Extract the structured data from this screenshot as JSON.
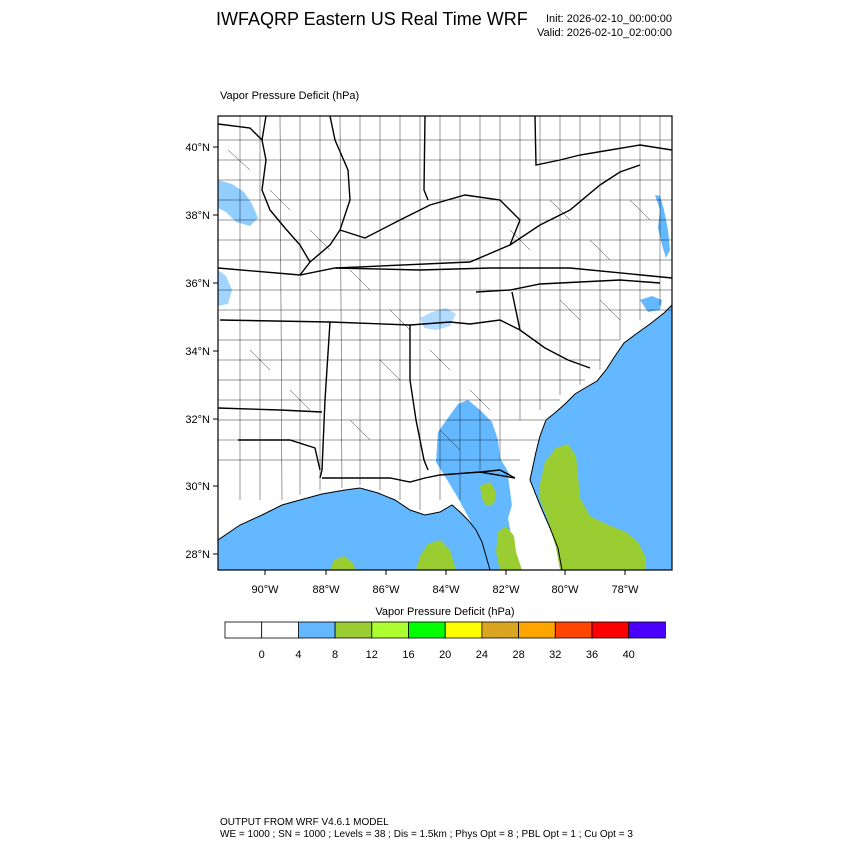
{
  "header": {
    "title": "IWFAQRP Eastern US Real Time WRF",
    "init": "Init: 2026-02-10_00:00:00",
    "valid": "Valid: 2026-02-10_02:00:00"
  },
  "field": {
    "label": "Vapor Pressure Deficit   (hPa)"
  },
  "map": {
    "lat_labels": [
      "40°N",
      "38°N",
      "36°N",
      "34°N",
      "32°N",
      "30°N",
      "28°N"
    ],
    "lon_labels": [
      "90°W",
      "88°W",
      "86°W",
      "84°W",
      "82°W",
      "80°W",
      "78°W"
    ],
    "ocean_color": "#63b8ff",
    "land_color": "#ffffff",
    "boundary_color": "#000000"
  },
  "colorbar": {
    "title": "Vapor Pressure Deficit  (hPa)",
    "tick_labels": [
      "0",
      "4",
      "8",
      "12",
      "16",
      "20",
      "24",
      "28",
      "32",
      "36",
      "40"
    ],
    "colors": [
      "#ffffff",
      "#ffffff",
      "#63b8ff",
      "#9acd32",
      "#adff2f",
      "#00ff00",
      "#ffff00",
      "#daa520",
      "#ffa500",
      "#ff4500",
      "#ff0000",
      "#4a00ff"
    ]
  },
  "footer": {
    "line1": "OUTPUT FROM WRF V4.6.1 MODEL",
    "line2": "WE = 1000 ; SN = 1000 ; Levels = 38 ; Dis = 1.5km ; Phys Opt = 8 ; PBL Opt = 1 ; Cu Opt = 3"
  }
}
